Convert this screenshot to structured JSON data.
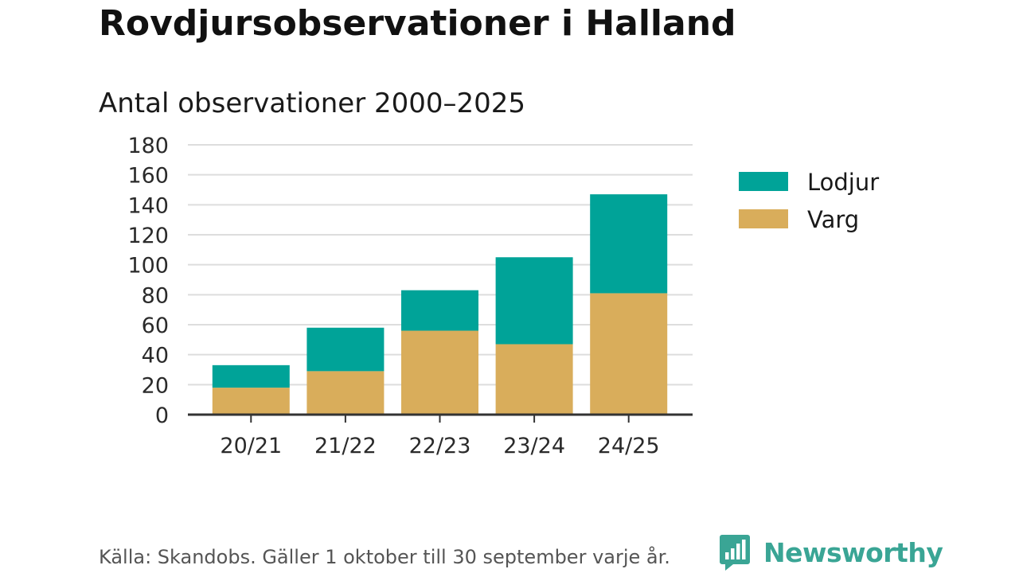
{
  "title": "Rovdjursobservationer i Halland",
  "subtitle": "Antal observationer 2000–2025",
  "source": "Källa: Skandobs. Gäller 1 oktober till 30 september varje år.",
  "brand": {
    "name": "Newsworthy",
    "icon": "bar-chart-speech-bubble-icon"
  },
  "colors": {
    "lodjur": "#00a398",
    "varg": "#d9ad5b",
    "grid": "#dddddd",
    "axis": "#333333",
    "brand": "#3aa595"
  },
  "chart_data": {
    "type": "bar",
    "stacked": true,
    "title": "Rovdjursobservationer i Halland",
    "subtitle": "Antal observationer 2000–2025",
    "xlabel": "",
    "ylabel": "",
    "categories": [
      "20/21",
      "21/22",
      "22/23",
      "23/24",
      "24/25"
    ],
    "series": [
      {
        "name": "Varg",
        "values": [
          18,
          29,
          56,
          47,
          81
        ]
      },
      {
        "name": "Lodjur",
        "values": [
          15,
          29,
          27,
          58,
          66
        ]
      }
    ],
    "legend": [
      {
        "name": "Lodjur"
      },
      {
        "name": "Varg"
      }
    ],
    "legend_position": "right",
    "ylim": [
      0,
      180
    ],
    "yticks": [
      0,
      20,
      40,
      60,
      80,
      100,
      120,
      140,
      160,
      180
    ],
    "grid": true
  }
}
